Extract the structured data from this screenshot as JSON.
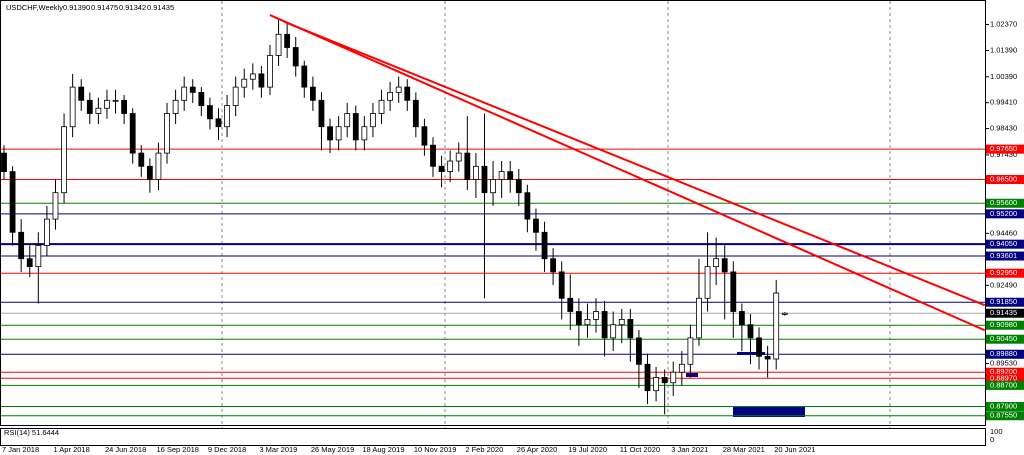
{
  "chart_data": {
    "type": "candlestick",
    "title": "USDCHF,Weekly",
    "header_values": [
      "0.91390",
      "0.91475",
      "0.91342",
      "0.91435"
    ],
    "categories": [
      "7 Jan 2018",
      null,
      null,
      null,
      null,
      null,
      "1 Apr 2018",
      null,
      null,
      null,
      null,
      null,
      "24 Jun 2018",
      null,
      null,
      null,
      null,
      null,
      "16 Sep 2018",
      null,
      null,
      null,
      null,
      null,
      "9 Dec 2018",
      null,
      null,
      null,
      null,
      null,
      "3 Mar 2019",
      null,
      null,
      null,
      null,
      null,
      "26 May 2019",
      null,
      null,
      null,
      null,
      null,
      "18 Aug 2019",
      null,
      null,
      null,
      null,
      null,
      "10 Nov 2019",
      null,
      null,
      null,
      null,
      null,
      "2 Feb 2020",
      null,
      null,
      null,
      null,
      null,
      "26 Apr 2020",
      null,
      null,
      null,
      null,
      null,
      "19 Jul 2020",
      null,
      null,
      null,
      null,
      null,
      "11 Oct 2020",
      null,
      null,
      null,
      null,
      null,
      "3 Jan 2021",
      null,
      null,
      null,
      null,
      null,
      "28 Mar 2021",
      null,
      null,
      null,
      null,
      null,
      "20 Jun 2021",
      null
    ],
    "open": [
      0.975,
      0.968,
      0.945,
      0.935,
      0.932,
      0.94,
      0.95,
      0.96,
      0.985,
      1.0,
      0.995,
      0.99,
      0.992,
      0.995,
      0.995,
      0.99,
      0.975,
      0.97,
      0.965,
      0.975,
      0.99,
      0.995,
      1.0,
      0.998,
      0.993,
      0.988,
      0.985,
      0.993,
      1.0,
      1.003,
      1.005,
      1.0,
      1.012,
      1.02,
      1.015,
      1.008,
      1.0,
      0.995,
      0.985,
      0.98,
      0.985,
      0.99,
      0.98,
      0.985,
      0.99,
      0.995,
      0.998,
      1.0,
      0.995,
      0.985,
      0.978,
      0.97,
      0.968,
      0.972,
      0.975,
      0.965,
      0.97,
      0.96,
      0.965,
      0.968,
      0.965,
      0.96,
      0.95,
      0.945,
      0.935,
      0.93,
      0.92,
      0.915,
      0.91,
      0.912,
      0.915,
      0.905,
      0.91,
      0.912,
      0.905,
      0.895,
      0.885,
      0.89,
      0.888,
      0.892,
      0.895,
      0.905,
      0.92,
      0.932,
      0.935,
      0.93,
      0.915,
      0.91,
      0.905,
      0.898,
      0.897,
      0.9139
    ],
    "high": [
      0.978,
      0.97,
      0.95,
      0.94,
      0.945,
      0.955,
      0.965,
      0.99,
      1.005,
      1.003,
      0.998,
      0.996,
      0.999,
      0.999,
      0.997,
      0.992,
      0.978,
      0.973,
      0.979,
      0.994,
      0.999,
      1.004,
      1.003,
      1.0,
      0.996,
      0.992,
      0.997,
      1.004,
      1.007,
      1.009,
      1.008,
      1.016,
      1.026,
      1.024,
      1.019,
      1.01,
      1.004,
      0.998,
      0.988,
      0.989,
      0.994,
      0.993,
      0.989,
      0.994,
      0.999,
      1.002,
      1.004,
      1.003,
      0.998,
      0.988,
      0.981,
      0.974,
      0.976,
      0.979,
      0.989,
      0.975,
      0.99,
      0.972,
      0.972,
      0.972,
      0.969,
      0.963,
      0.954,
      0.949,
      0.939,
      0.934,
      0.929,
      0.92,
      0.918,
      0.92,
      0.919,
      0.915,
      0.916,
      0.916,
      0.908,
      0.899,
      0.894,
      0.893,
      0.896,
      0.9,
      0.91,
      0.935,
      0.945,
      0.943,
      0.94,
      0.934,
      0.918,
      0.914,
      0.909,
      0.902,
      0.927,
      0.91475
    ],
    "low": [
      0.965,
      0.94,
      0.93,
      0.928,
      0.918,
      0.936,
      0.946,
      0.956,
      0.981,
      0.991,
      0.986,
      0.986,
      0.988,
      0.99,
      0.986,
      0.971,
      0.966,
      0.96,
      0.961,
      0.971,
      0.986,
      0.991,
      0.994,
      0.989,
      0.984,
      0.98,
      0.981,
      0.989,
      0.996,
      0.999,
      0.996,
      0.997,
      1.008,
      1.011,
      1.004,
      0.996,
      0.991,
      0.976,
      0.975,
      0.976,
      0.981,
      0.976,
      0.976,
      0.981,
      0.986,
      0.991,
      0.994,
      0.991,
      0.981,
      0.974,
      0.966,
      0.962,
      0.964,
      0.968,
      0.961,
      0.958,
      0.92,
      0.955,
      0.958,
      0.96,
      0.955,
      0.945,
      0.938,
      0.93,
      0.925,
      0.912,
      0.908,
      0.902,
      0.905,
      0.907,
      0.898,
      0.9,
      0.903,
      0.896,
      0.886,
      0.88,
      0.881,
      0.876,
      0.883,
      0.887,
      0.89,
      0.902,
      0.915,
      0.925,
      0.912,
      0.905,
      0.9,
      0.895,
      0.893,
      0.89,
      0.893,
      0.91342
    ],
    "close": [
      0.968,
      0.945,
      0.935,
      0.932,
      0.94,
      0.95,
      0.96,
      0.985,
      1.0,
      0.995,
      0.99,
      0.992,
      0.995,
      0.995,
      0.99,
      0.975,
      0.97,
      0.965,
      0.975,
      0.99,
      0.995,
      1.0,
      0.998,
      0.993,
      0.988,
      0.985,
      0.993,
      1.0,
      1.003,
      1.005,
      1.0,
      1.012,
      1.02,
      1.015,
      1.008,
      1.0,
      0.995,
      0.985,
      0.98,
      0.985,
      0.99,
      0.98,
      0.985,
      0.99,
      0.995,
      0.998,
      1.0,
      0.995,
      0.985,
      0.978,
      0.97,
      0.968,
      0.972,
      0.975,
      0.965,
      0.97,
      0.96,
      0.965,
      0.968,
      0.965,
      0.96,
      0.95,
      0.945,
      0.935,
      0.93,
      0.92,
      0.915,
      0.91,
      0.912,
      0.915,
      0.905,
      0.91,
      0.912,
      0.905,
      0.895,
      0.885,
      0.89,
      0.888,
      0.892,
      0.895,
      0.905,
      0.92,
      0.932,
      0.935,
      0.93,
      0.915,
      0.91,
      0.905,
      0.898,
      0.897,
      0.922,
      0.91435
    ],
    "ylim": [
      0.872,
      1.033
    ],
    "yticks": [
      {
        "value": 1.0237,
        "label": "1.02370"
      },
      {
        "value": 1.0139,
        "label": "1.01390"
      },
      {
        "value": 1.0039,
        "label": "1.00390"
      },
      {
        "value": 0.9941,
        "label": "0.99410"
      },
      {
        "value": 0.9843,
        "label": "0.98430"
      },
      {
        "value": 0.9743,
        "label": "0.97430"
      },
      {
        "value": 0.9446,
        "label": "0.94460"
      },
      {
        "value": 0.9249,
        "label": "0.92490"
      },
      {
        "value": 0.8953,
        "label": "0.89530"
      }
    ],
    "levels": [
      {
        "price": 0.9765,
        "label": "0.97650",
        "color": "#ff0000"
      },
      {
        "price": 0.965,
        "label": "0.96500",
        "color": "#ff0000"
      },
      {
        "price": 0.956,
        "label": "0.95600",
        "color": "#008000"
      },
      {
        "price": 0.952,
        "label": "0.95200",
        "color": "#000080"
      },
      {
        "price": 0.9405,
        "label": "0.94050",
        "color": "#000080"
      },
      {
        "price": 0.93601,
        "label": "0.93601",
        "color": "#000080"
      },
      {
        "price": 0.9295,
        "label": "0.92950",
        "color": "#ff0000"
      },
      {
        "price": 0.9185,
        "label": "0.91850",
        "color": "#000080"
      },
      {
        "price": 0.91435,
        "label": "0.91435",
        "color": "#000000"
      },
      {
        "price": 0.9098,
        "label": "0.90980",
        "color": "#008000"
      },
      {
        "price": 0.9045,
        "label": "0.90450",
        "color": "#008000"
      },
      {
        "price": 0.8988,
        "label": "0.89880",
        "color": "#000080"
      },
      {
        "price": 0.892,
        "label": "0.89200",
        "color": "#ff0000"
      },
      {
        "price": 0.8897,
        "label": "0.88970",
        "color": "#ff0000"
      },
      {
        "price": 0.887,
        "label": "0.88700",
        "color": "#008000"
      },
      {
        "price": 0.879,
        "label": "0.87900",
        "color": "#008000"
      },
      {
        "price": 0.8755,
        "label": "0.87550",
        "color": "#008000"
      }
    ],
    "trendlines": [
      {
        "start": [
          31,
          1.0273
        ],
        "end": [
          114.3,
          0.9079
        ],
        "color": "#ff0000"
      },
      {
        "start": [
          32.7,
          1.0247
        ],
        "end": [
          114.3,
          0.9174
        ],
        "color": "#ff0000"
      }
    ],
    "rsi": {
      "title": "RSI(14) 51.6444",
      "scale_labels": [
        "100",
        "0"
      ]
    }
  }
}
